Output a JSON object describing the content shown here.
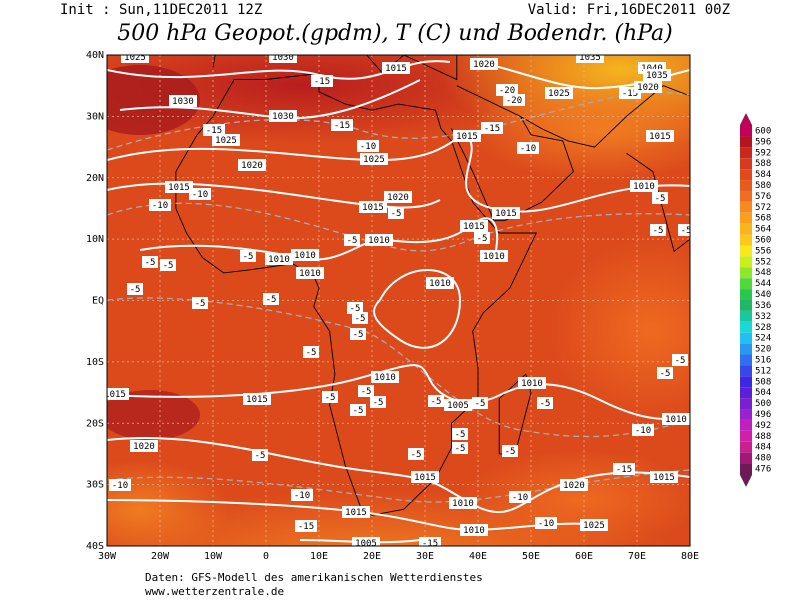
{
  "header": {
    "init": "Init : Sun,11DEC2011 12Z",
    "valid": "Valid: Fri,16DEC2011 00Z",
    "title": "500 hPa Geopot.(gpdm), T (C) und Bodendr. (hPa)"
  },
  "longitude_labels": [
    "30W",
    "20W",
    "10W",
    "0",
    "10E",
    "20E",
    "30E",
    "40E",
    "50E",
    "60E",
    "70E",
    "80E"
  ],
  "latitude_labels": [
    "40N",
    "30N",
    "20N",
    "10N",
    "EQ",
    "10S",
    "20S",
    "30S",
    "40S"
  ],
  "colorbar": {
    "values": [
      600,
      596,
      592,
      588,
      584,
      580,
      576,
      572,
      568,
      564,
      560,
      556,
      552,
      548,
      544,
      540,
      536,
      532,
      528,
      524,
      520,
      516,
      512,
      508,
      504,
      500,
      496,
      492,
      488,
      484,
      480,
      476
    ]
  },
  "contour_labels": [
    "1025",
    "1030",
    "1015",
    "1020",
    "1035",
    "1040",
    "1035",
    "1030",
    "1030",
    "-15",
    "-15",
    "-20",
    "-20",
    "1025",
    "-15",
    "1020",
    "-15",
    "1025",
    "-10",
    "1015",
    "-15",
    "1025",
    "-10",
    "1015",
    "1020",
    "1015",
    "-10",
    "-10",
    "1020",
    "1015",
    "-5",
    "1010",
    "-5",
    "1015",
    "1015",
    "-5",
    "1010",
    "-5",
    "-5",
    "-5",
    "-5",
    "1010",
    "1010",
    "1010",
    "-5",
    "-5",
    "1010",
    "-5",
    "1010",
    "-5",
    "-5",
    "-5",
    "-5",
    "-5",
    "-5",
    "-5",
    "-5",
    "1010",
    "1010",
    "1015",
    "1015",
    "-5",
    "-5",
    "-5",
    "-5",
    "1005",
    "-5",
    "-5",
    "-5",
    "1010",
    "-10",
    "-5",
    "-5",
    "1020",
    "-5",
    "-5",
    "-5",
    "1015",
    "-15",
    "1015",
    "1020",
    "-10",
    "-10",
    "-10",
    "1010",
    "1015",
    "-15",
    "-10",
    "1025",
    "1010",
    "1005",
    "-15"
  ],
  "footer": {
    "source": "Daten: GFS-Modell des amerikanischen Wetterdienstes",
    "website": "www.wetterzentrale.de"
  }
}
